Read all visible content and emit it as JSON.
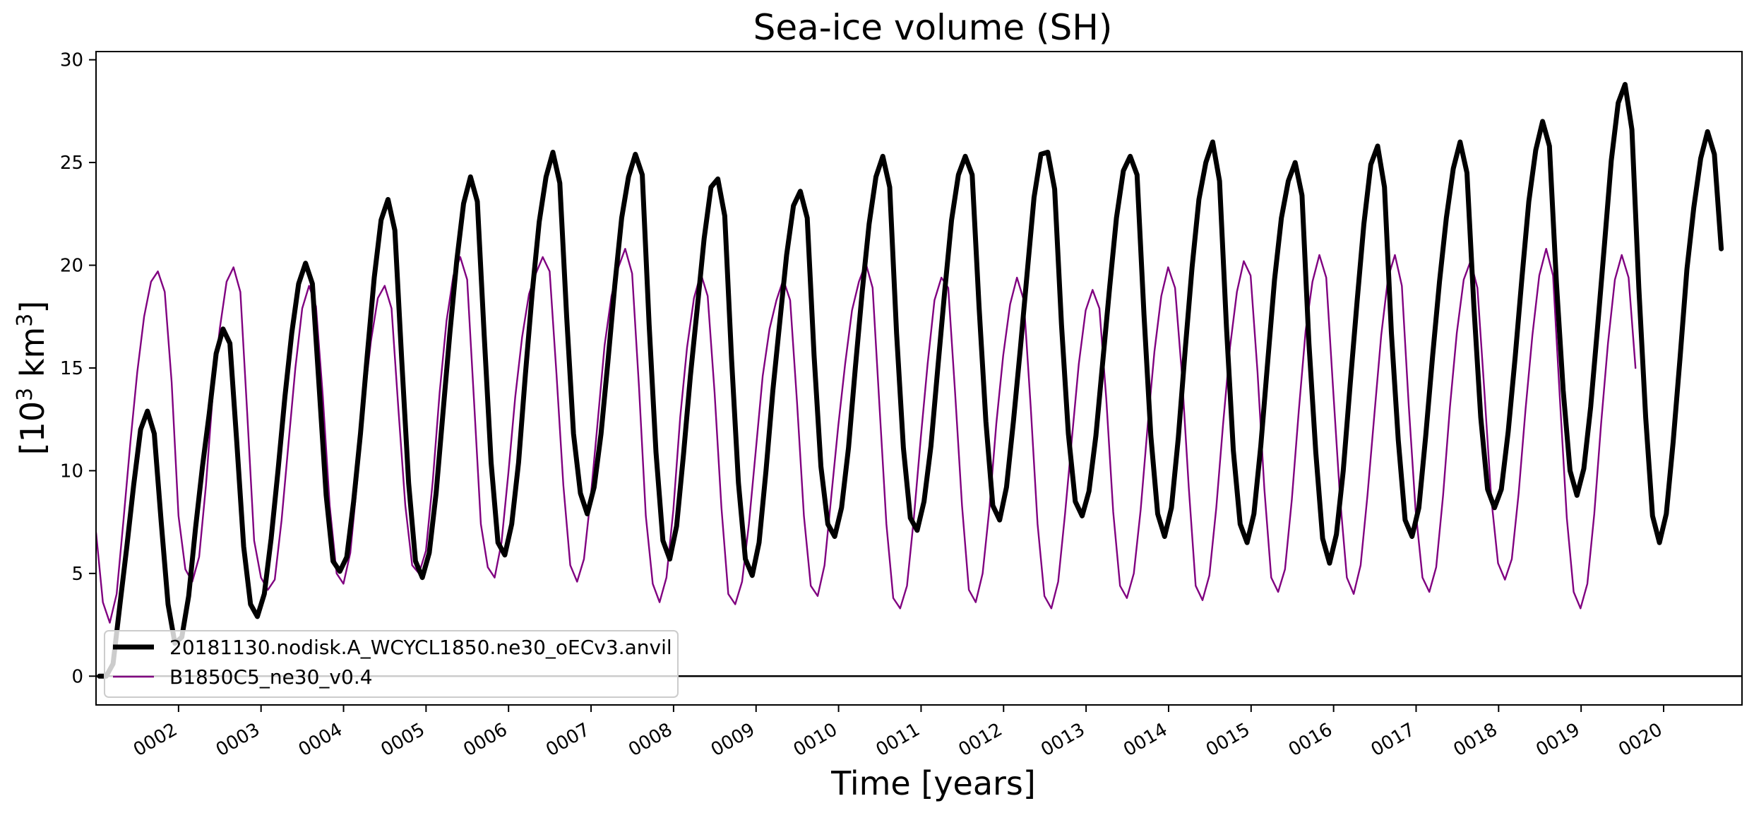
{
  "chart_data": {
    "type": "line",
    "title": "Sea-ice volume (SH)",
    "xlabel": "Time [years]",
    "ylabel_base": "[10",
    "ylabel_sup": "3",
    "ylabel_mid": " km",
    "ylabel_sup2": "3",
    "ylabel_end": "]",
    "x_unit": "years",
    "xlim": [
      1.0,
      20.95
    ],
    "ylim": [
      -1.4,
      30.4
    ],
    "grid": false,
    "legend_position": "lower-left",
    "yticks": [
      0,
      5,
      10,
      15,
      20,
      25,
      30
    ],
    "xticks": [
      {
        "value": 2,
        "label": "0002"
      },
      {
        "value": 3,
        "label": "0003"
      },
      {
        "value": 4,
        "label": "0004"
      },
      {
        "value": 5,
        "label": "0005"
      },
      {
        "value": 6,
        "label": "0006"
      },
      {
        "value": 7,
        "label": "0007"
      },
      {
        "value": 8,
        "label": "0008"
      },
      {
        "value": 9,
        "label": "0009"
      },
      {
        "value": 10,
        "label": "0010"
      },
      {
        "value": 11,
        "label": "0011"
      },
      {
        "value": 12,
        "label": "0012"
      },
      {
        "value": 13,
        "label": "0013"
      },
      {
        "value": 14,
        "label": "0014"
      },
      {
        "value": 15,
        "label": "0015"
      },
      {
        "value": 16,
        "label": "0016"
      },
      {
        "value": 17,
        "label": "0017"
      },
      {
        "value": 18,
        "label": "0018"
      },
      {
        "value": 19,
        "label": "0019"
      },
      {
        "value": 20,
        "label": "0020"
      }
    ],
    "hline": 0,
    "series": [
      {
        "name": "20181130.nodisk.A_WCYCL1850.ne30_oECv3.anvil",
        "color": "#000000",
        "line_width": 7,
        "start": 1.04,
        "step": 0.0833,
        "values": [
          0.0,
          0.0,
          0.6,
          3.5,
          6.3,
          9.3,
          12.0,
          12.9,
          11.8,
          7.5,
          3.5,
          1.6,
          1.9,
          3.9,
          7.2,
          10.2,
          12.8,
          15.7,
          16.9,
          16.2,
          11.4,
          6.3,
          3.5,
          2.9,
          4.0,
          6.7,
          10.0,
          13.6,
          16.7,
          19.1,
          20.1,
          19.1,
          14.0,
          8.8,
          5.6,
          5.1,
          5.8,
          8.5,
          11.8,
          15.7,
          19.4,
          22.2,
          23.2,
          21.7,
          15.4,
          9.4,
          5.6,
          4.8,
          6.0,
          8.9,
          12.8,
          16.7,
          20.2,
          23.0,
          24.3,
          23.1,
          16.6,
          10.4,
          6.5,
          5.9,
          7.4,
          10.4,
          14.7,
          18.7,
          22.1,
          24.3,
          25.5,
          24.0,
          17.5,
          11.8,
          8.9,
          7.9,
          9.2,
          11.8,
          15.3,
          19.0,
          22.3,
          24.3,
          25.4,
          24.4,
          17.1,
          10.9,
          6.6,
          5.7,
          7.3,
          10.8,
          14.6,
          17.9,
          21.3,
          23.8,
          24.2,
          22.4,
          15.4,
          9.4,
          5.7,
          4.9,
          6.5,
          10.0,
          13.9,
          17.2,
          20.5,
          22.9,
          23.6,
          22.3,
          15.6,
          10.2,
          7.4,
          6.8,
          8.2,
          11.1,
          15.0,
          18.7,
          22.0,
          24.3,
          25.3,
          23.8,
          16.7,
          11.1,
          7.7,
          7.1,
          8.5,
          11.2,
          15.0,
          18.7,
          22.2,
          24.4,
          25.3,
          24.4,
          18.0,
          12.4,
          8.3,
          7.6,
          9.2,
          12.4,
          15.9,
          19.6,
          23.3,
          25.4,
          25.5,
          23.7,
          17.1,
          11.8,
          8.5,
          7.8,
          9.0,
          11.7,
          15.3,
          18.9,
          22.3,
          24.6,
          25.3,
          24.4,
          17.6,
          11.7,
          7.9,
          6.8,
          8.2,
          11.6,
          15.9,
          19.9,
          23.2,
          25.0,
          26.0,
          24.1,
          17.0,
          11.0,
          7.4,
          6.5,
          7.9,
          11.2,
          15.3,
          19.3,
          22.3,
          24.1,
          25.0,
          23.4,
          16.2,
          10.9,
          6.7,
          5.5,
          6.9,
          10.0,
          14.2,
          18.2,
          22.0,
          24.9,
          25.8,
          23.8,
          16.7,
          11.5,
          7.6,
          6.8,
          8.2,
          11.7,
          15.6,
          19.2,
          22.3,
          24.7,
          26.0,
          24.5,
          18.0,
          12.6,
          9.1,
          8.2,
          9.1,
          11.9,
          15.5,
          19.4,
          23.1,
          25.6,
          27.0,
          25.8,
          19.2,
          13.9,
          10.0,
          8.8,
          10.1,
          13.1,
          17.0,
          21.0,
          25.1,
          27.9,
          28.8,
          26.6,
          18.9,
          12.6,
          7.8,
          6.5,
          7.9,
          11.4,
          15.5,
          19.8,
          22.8,
          25.2,
          26.5,
          25.4,
          20.8
        ]
      },
      {
        "name": "B1850C5_ne30_v0.4",
        "color": "#800080",
        "line_width": 2.4,
        "start": 1.0,
        "step": 0.0833,
        "values": [
          7.0,
          3.6,
          2.6,
          4.0,
          7.6,
          11.4,
          14.8,
          17.5,
          19.2,
          19.7,
          18.7,
          14.3,
          7.8,
          5.2,
          4.6,
          5.8,
          9.3,
          13.8,
          16.9,
          19.2,
          19.9,
          18.7,
          12.8,
          6.6,
          4.8,
          4.2,
          4.7,
          7.6,
          11.3,
          15.0,
          17.9,
          19.0,
          18.0,
          13.6,
          8.3,
          5.0,
          4.5,
          6.0,
          9.5,
          13.4,
          16.3,
          18.4,
          19.0,
          17.9,
          13.0,
          8.3,
          5.4,
          5.0,
          6.1,
          9.5,
          13.8,
          17.3,
          19.5,
          20.4,
          19.3,
          13.4,
          7.4,
          5.3,
          4.8,
          6.5,
          9.9,
          13.6,
          16.5,
          18.6,
          19.6,
          20.4,
          19.7,
          14.7,
          9.3,
          5.4,
          4.6,
          5.7,
          8.8,
          12.4,
          16.1,
          18.5,
          19.9,
          20.8,
          19.6,
          14.1,
          7.8,
          4.5,
          3.6,
          4.8,
          8.1,
          12.6,
          16.0,
          18.4,
          19.6,
          18.5,
          13.8,
          8.2,
          4.0,
          3.5,
          4.6,
          7.4,
          11.0,
          14.6,
          16.9,
          18.3,
          19.3,
          18.3,
          13.3,
          7.8,
          4.4,
          3.9,
          5.4,
          8.8,
          12.2,
          15.2,
          17.8,
          19.2,
          20.1,
          18.9,
          13.1,
          7.4,
          3.8,
          3.3,
          4.4,
          7.7,
          11.6,
          15.2,
          18.3,
          19.4,
          18.9,
          13.8,
          8.3,
          4.2,
          3.6,
          5.0,
          8.2,
          12.3,
          15.6,
          18.1,
          19.4,
          18.3,
          13.1,
          7.4,
          3.9,
          3.3,
          4.6,
          7.9,
          11.6,
          15.2,
          17.8,
          18.8,
          17.9,
          13.5,
          8.0,
          4.4,
          3.8,
          5.0,
          8.1,
          12.1,
          15.8,
          18.5,
          19.9,
          18.9,
          14.7,
          9.2,
          4.4,
          3.7,
          4.9,
          8.2,
          12.3,
          16.0,
          18.7,
          20.2,
          19.5,
          14.8,
          9.1,
          4.8,
          4.1,
          5.2,
          8.6,
          12.9,
          16.8,
          19.2,
          20.5,
          19.4,
          14.0,
          8.7,
          4.8,
          4.0,
          5.4,
          8.8,
          12.7,
          16.6,
          19.4,
          20.5,
          19.0,
          13.2,
          8.1,
          4.8,
          4.1,
          5.3,
          8.8,
          13.1,
          16.7,
          19.3,
          20.2,
          18.9,
          13.9,
          8.7,
          5.5,
          4.7,
          5.7,
          8.9,
          13.0,
          16.6,
          19.5,
          20.8,
          19.5,
          13.5,
          7.7,
          4.1,
          3.3,
          4.5,
          7.9,
          12.3,
          16.2,
          19.3,
          20.5,
          19.4,
          15.0
        ]
      }
    ]
  }
}
